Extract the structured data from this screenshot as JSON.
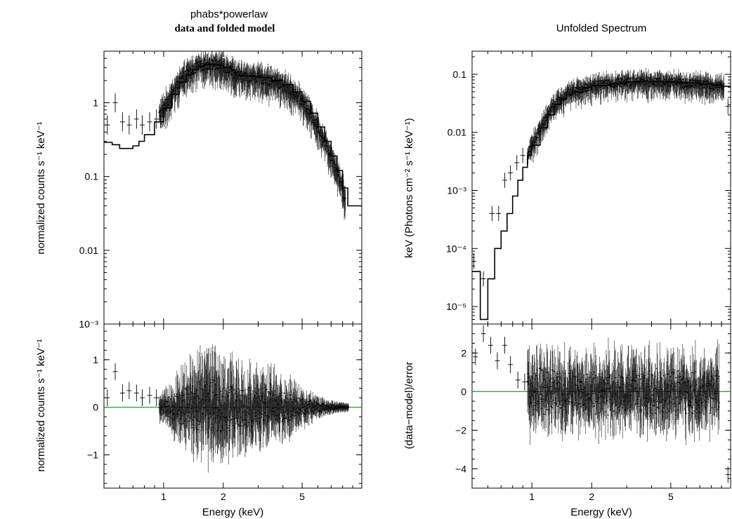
{
  "figure": {
    "left_title_line1": "phabs*powerlaw",
    "left_title_line2": "data and folded model",
    "right_title": "Unfolded Spectrum"
  },
  "chart_data": [
    {
      "id": "left_top",
      "type": "scatter",
      "title": "phabs*powerlaw",
      "subtitle": "data and folded model",
      "xlabel": "",
      "ylabel": "normalized counts s⁻¹ keV⁻¹",
      "xscale": "log",
      "yscale": "log",
      "xlim": [
        0.5,
        10
      ],
      "ylim": [
        0.001,
        5
      ],
      "xticks": [
        1,
        2,
        5
      ],
      "xtick_labels": [
        "",
        "",
        ""
      ],
      "yticks": [
        0.001,
        0.01,
        0.1,
        1
      ],
      "ytick_labels": [
        "10⁻³",
        "0.01",
        "0.1",
        "1"
      ],
      "series": [
        {
          "role": "model",
          "style": "step",
          "x": [
            0.5,
            0.55,
            0.6,
            0.65,
            0.7,
            0.75,
            0.8,
            0.9,
            1.0,
            1.1,
            1.2,
            1.3,
            1.4,
            1.5,
            1.6,
            1.7,
            1.8,
            1.9,
            2.0,
            2.1,
            2.2,
            2.3,
            2.5,
            2.8,
            3.0,
            3.5,
            4.0,
            4.5,
            5.0,
            5.5,
            6.0,
            6.5,
            7.0,
            7.5,
            8.0,
            8.5,
            9.0,
            9.5,
            10.0
          ],
          "y": [
            0.29,
            0.27,
            0.24,
            0.24,
            0.26,
            0.3,
            0.37,
            0.55,
            0.85,
            1.3,
            1.9,
            2.4,
            2.8,
            3.1,
            3.3,
            3.35,
            3.3,
            3.2,
            3.0,
            3.0,
            2.8,
            2.35,
            2.3,
            2.25,
            2.2,
            2.0,
            1.75,
            1.4,
            1.05,
            0.72,
            0.47,
            0.3,
            0.19,
            0.12,
            0.07,
            0.04,
            0.04,
            0.04,
            0.04
          ]
        },
        {
          "role": "data",
          "style": "crosses",
          "x": [
            0.52,
            0.57,
            0.62,
            0.67,
            0.73,
            0.78,
            0.85,
            0.92
          ],
          "y": [
            0.5,
            1.0,
            0.55,
            0.5,
            0.6,
            0.5,
            0.55,
            0.6
          ]
        }
      ]
    },
    {
      "id": "left_bottom",
      "type": "scatter",
      "xlabel": "Energy (keV)",
      "ylabel": "normalized counts s⁻¹ keV⁻¹",
      "xscale": "log",
      "yscale": "linear",
      "xlim": [
        0.5,
        10
      ],
      "ylim": [
        -1.7,
        1.75
      ],
      "xticks": [
        1,
        2,
        5
      ],
      "xtick_labels": [
        "1",
        "2",
        "5"
      ],
      "yticks": [
        -1,
        0,
        1
      ],
      "ytick_labels": [
        "−1",
        "0",
        "1"
      ],
      "zero_line_color": "#00cc00",
      "series": [
        {
          "role": "data",
          "style": "crosses",
          "x": [
            0.52,
            0.57,
            0.62,
            0.67,
            0.73,
            0.78,
            0.85,
            0.92
          ],
          "y": [
            0.2,
            0.75,
            0.3,
            0.35,
            0.3,
            0.2,
            0.25,
            0.2
          ]
        }
      ]
    },
    {
      "id": "right_top",
      "type": "scatter",
      "title": "Unfolded Spectrum",
      "xlabel": "",
      "ylabel": "keV (Photons cm⁻² s⁻¹ keV⁻¹)",
      "xscale": "log",
      "yscale": "log",
      "xlim": [
        0.5,
        10
      ],
      "ylim": [
        5e-06,
        0.25
      ],
      "xticks": [
        1,
        2,
        5
      ],
      "xtick_labels": [
        "",
        "",
        ""
      ],
      "yticks": [
        1e-05,
        0.0001,
        0.001,
        0.01,
        0.1
      ],
      "ytick_labels": [
        "10⁻⁵",
        "10⁻⁴",
        "10⁻³",
        "0.01",
        "0.1"
      ],
      "series": [
        {
          "role": "model",
          "style": "step",
          "x": [
            0.5,
            0.55,
            0.6,
            0.65,
            0.7,
            0.75,
            0.8,
            0.85,
            0.9,
            0.95,
            1.0,
            1.1,
            1.2,
            1.3,
            1.4,
            1.5,
            1.6,
            1.8,
            2.0,
            2.5,
            3.0,
            3.5,
            4.0,
            5.0,
            6.0,
            7.0,
            8.0,
            9.0,
            10.0
          ],
          "y": [
            4e-05,
            6e-06,
            3e-05,
            0.0001,
            0.0002,
            0.0004,
            0.0008,
            0.0015,
            0.0025,
            0.004,
            0.006,
            0.012,
            0.02,
            0.03,
            0.038,
            0.045,
            0.05,
            0.058,
            0.064,
            0.07,
            0.074,
            0.075,
            0.075,
            0.073,
            0.071,
            0.068,
            0.065,
            0.062,
            0.06
          ]
        },
        {
          "role": "data",
          "style": "crosses",
          "x": [
            0.51,
            0.57,
            0.63,
            0.68,
            0.73,
            0.78,
            0.84,
            0.9,
            9.7
          ],
          "y": [
            6e-05,
            3e-05,
            0.0004,
            0.0004,
            0.0015,
            0.002,
            0.003,
            0.004,
            0.028
          ]
        }
      ]
    },
    {
      "id": "right_bottom",
      "type": "scatter",
      "xlabel": "Energy (keV)",
      "ylabel": "(data−model)/error",
      "xscale": "log",
      "yscale": "linear",
      "xlim": [
        0.5,
        10
      ],
      "ylim": [
        -5,
        3.5
      ],
      "xticks": [
        1,
        2,
        5
      ],
      "xtick_labels": [
        "1",
        "2",
        "5"
      ],
      "yticks": [
        -4,
        -2,
        0,
        2
      ],
      "ytick_labels": [
        "−4",
        "−2",
        "0",
        "2"
      ],
      "zero_line_color": "#00cc00",
      "series": [
        {
          "role": "data",
          "style": "crosses",
          "x": [
            0.52,
            0.57,
            0.62,
            0.67,
            0.73,
            0.78,
            0.85,
            0.92,
            9.7
          ],
          "y": [
            1.8,
            3.0,
            2.4,
            1.6,
            2.4,
            1.4,
            0.6,
            0.5,
            -4.3
          ]
        }
      ]
    }
  ]
}
